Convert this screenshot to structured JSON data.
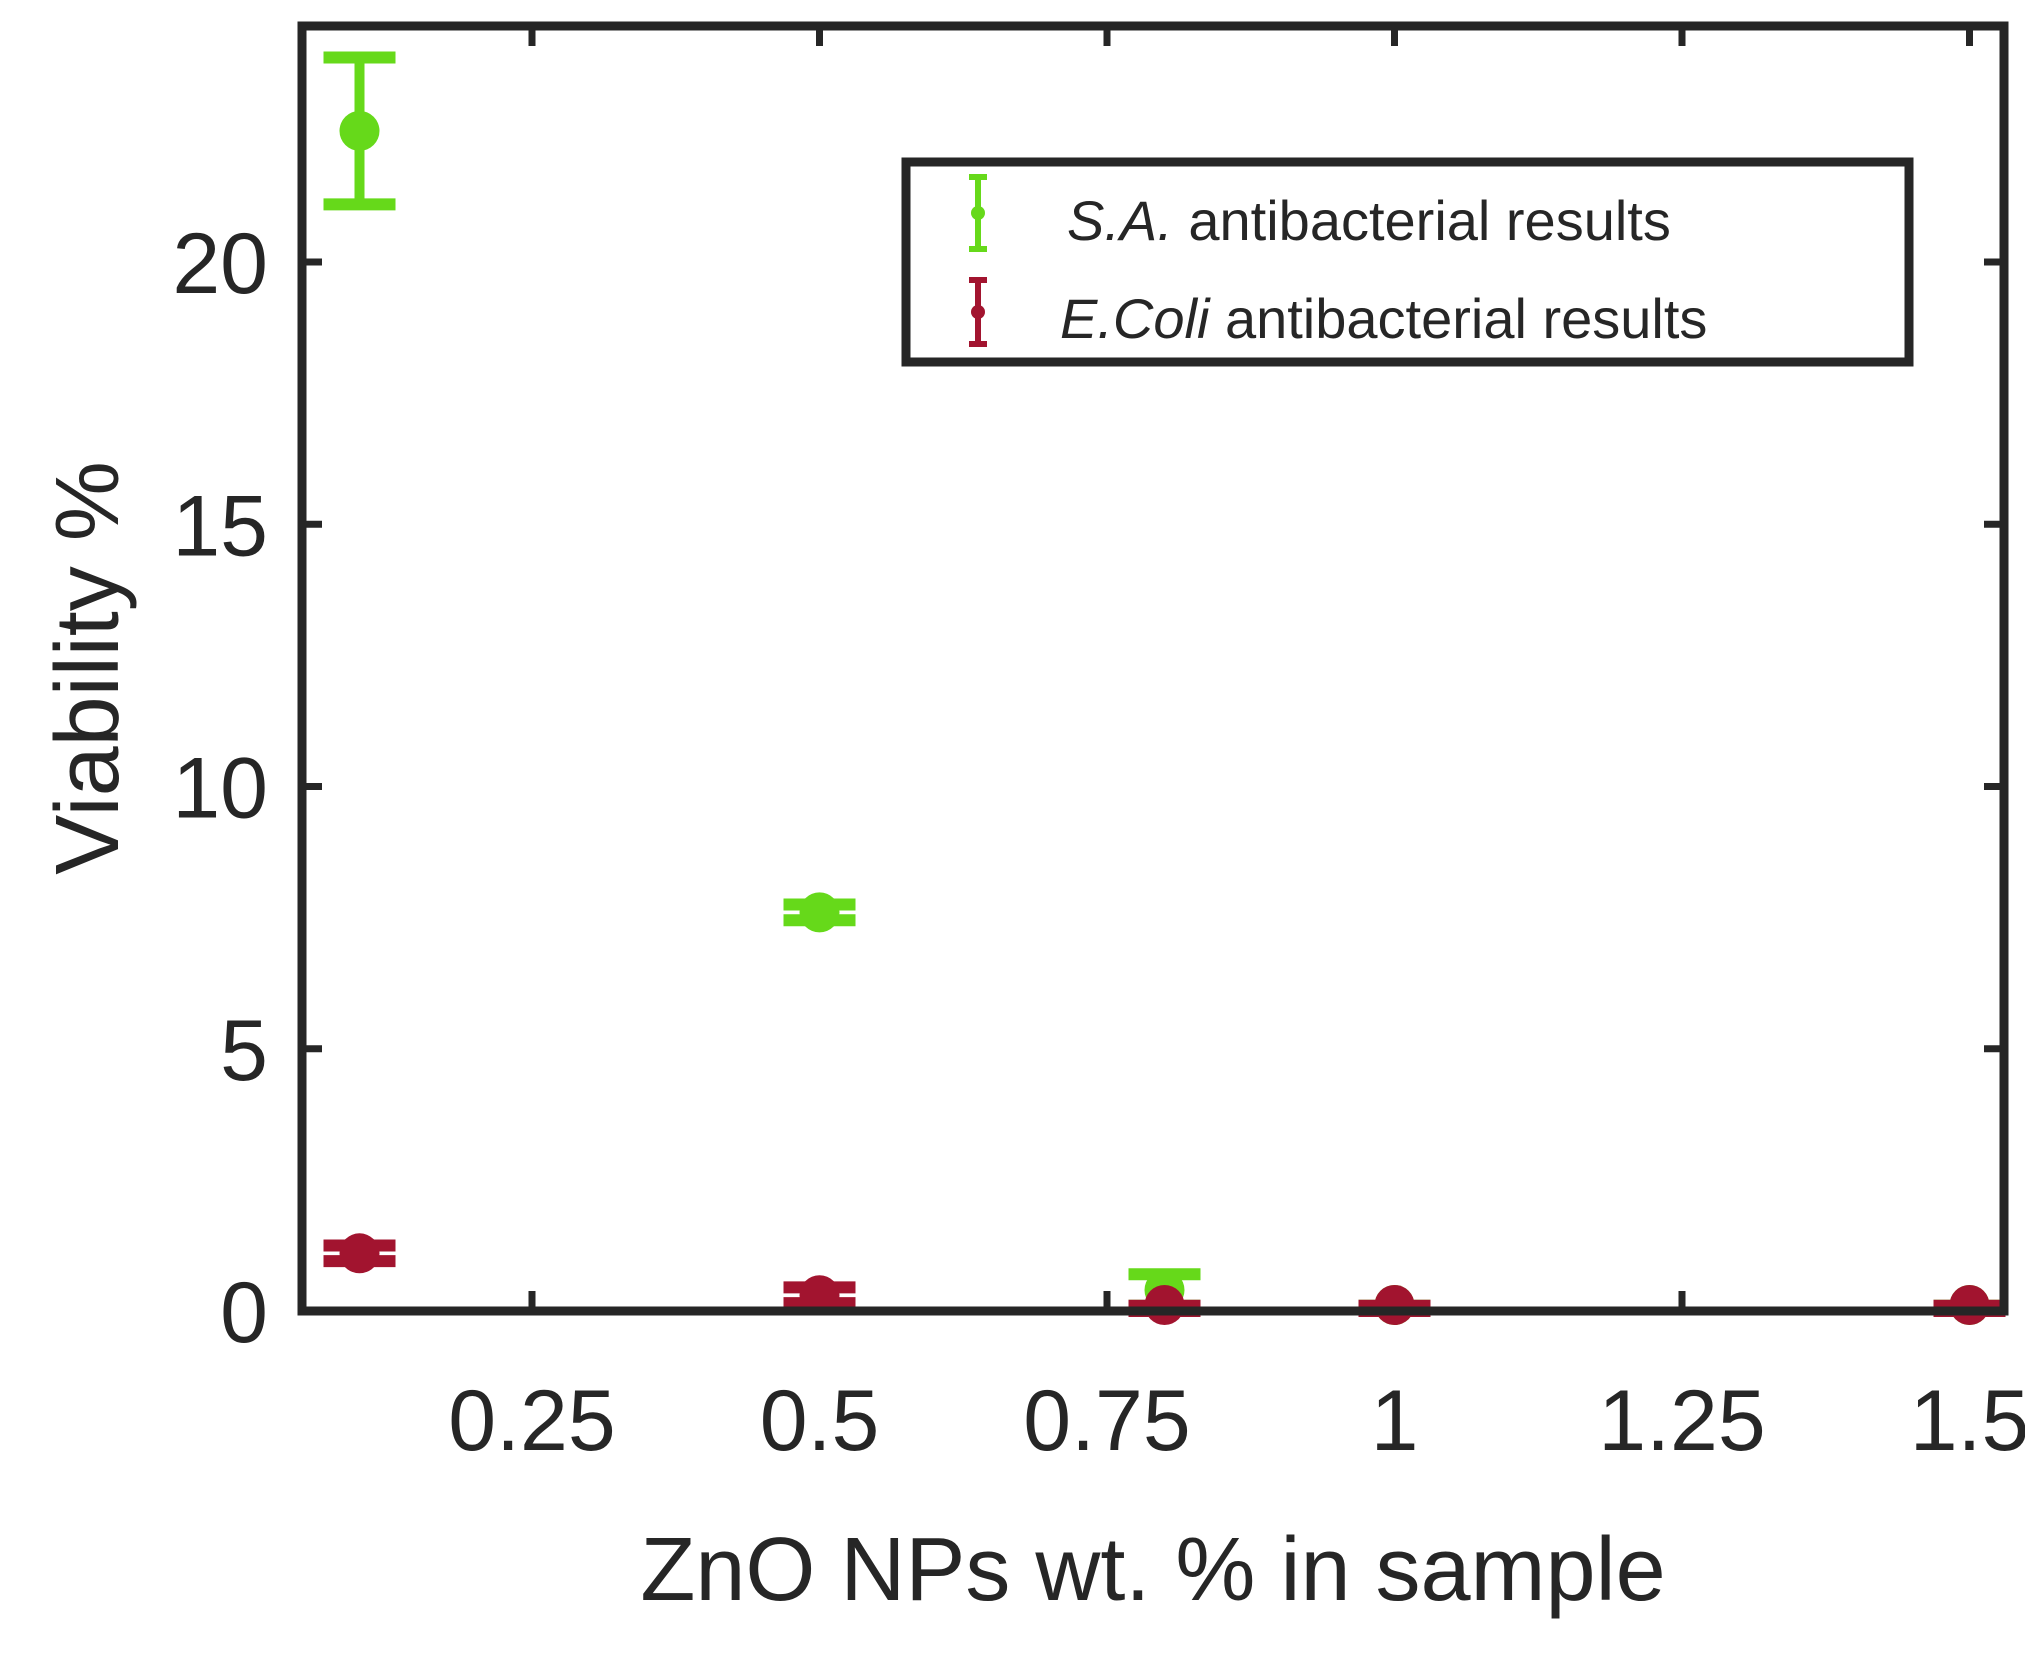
{
  "chart_data": {
    "type": "scatter",
    "title": "",
    "xlabel": "ZnO NPs wt. % in sample",
    "ylabel": "Viability %",
    "xlim": [
      0.05,
      1.53
    ],
    "ylim": [
      0,
      24.5
    ],
    "xticks": [
      0.25,
      0.5,
      0.75,
      1,
      1.25,
      1.5
    ],
    "xtick_labels": [
      "0.25",
      "0.5",
      "0.75",
      "1",
      "1.25",
      "1.5"
    ],
    "yticks": [
      0,
      5,
      10,
      15,
      20
    ],
    "ytick_labels": [
      "0",
      "5",
      "10",
      "15",
      "20"
    ],
    "grid": false,
    "legend_position": "top-right",
    "series": [
      {
        "name": "S.A. antibacterial results",
        "name_italic": "S.A.",
        "name_rest": "antibacterial results",
        "color": "#66d91a",
        "points": [
          {
            "x": 0.1,
            "y": 22.5,
            "err": 1.4
          },
          {
            "x": 0.5,
            "y": 7.6,
            "err": 0.15
          },
          {
            "x": 0.8,
            "y": 0.4,
            "err": 0.3
          },
          {
            "x": 1.0,
            "y": 0.05,
            "err": 0.05
          },
          {
            "x": 1.5,
            "y": 0.05,
            "err": 0.05
          }
        ]
      },
      {
        "name": "E.Coli antibacterial results",
        "name_italic": "E.Coli",
        "name_rest": "antibacterial results",
        "color": "#a2142f",
        "points": [
          {
            "x": 0.1,
            "y": 1.1,
            "err": 0.15
          },
          {
            "x": 0.5,
            "y": 0.3,
            "err": 0.15
          },
          {
            "x": 0.8,
            "y": 0.05,
            "err": 0.05
          },
          {
            "x": 1.0,
            "y": 0.05,
            "err": 0.05
          },
          {
            "x": 1.5,
            "y": 0.05,
            "err": 0.05
          }
        ]
      }
    ]
  }
}
